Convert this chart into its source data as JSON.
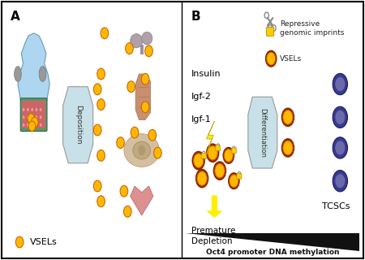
{
  "panel_A_label": "A",
  "panel_B_label": "B",
  "vsel_color": "#FFB800",
  "vsel_edge_color": "#CC6600",
  "vsel_dark_ring": "#8B2500",
  "tcsc_color": "#3A3A8C",
  "tcsc_edge_color": "#1A1A6C",
  "tcsc_inner_color": "#9999CC",
  "deposition_box_color": "#C8E0E8",
  "differentiation_box_color": "#C8E0E8",
  "box_edge_color": "#999999",
  "label_insulin": "Insulin",
  "label_igf2": "Igf-2",
  "label_igf1": "Igf-1",
  "label_deposition": "Deposition",
  "label_differentiation": "Differentiation",
  "label_premature": "Premature\nDepletion",
  "label_tcscs": "TCSCs",
  "label_vsels": "VSELs",
  "label_repressive": "Repressive\ngenomic imprints",
  "label_oct4": "Oct4 promoter DNA methylation",
  "background_color": "#FFFFFF",
  "border_color": "#000000",
  "triangle_color": "#111111",
  "body_color": "#AED6F1",
  "body_edge_color": "#6699BB",
  "body_dark_color": "#888888",
  "uterus_color": "#CC7777",
  "uterus_cell_color": "#DD9999",
  "uterus_outline": "#AA5555",
  "uterus_frame_color": "#559966",
  "lightning_color": "#FFEE00",
  "lightning_edge": "#CCAA00",
  "arrow_color": "#FFEE00",
  "arrow_edge": "#CCAA00",
  "lock_color": "#FFCC00",
  "lock_edge": "#AA8800",
  "scissors_color": "#888888"
}
